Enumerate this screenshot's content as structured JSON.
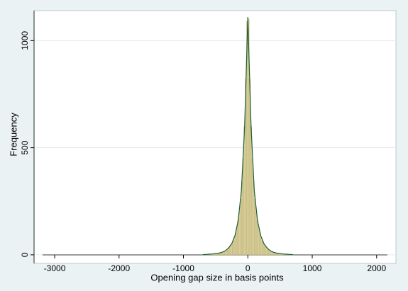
{
  "chart_data": {
    "type": "histogram",
    "xlabel": "Opening gap size in basis points",
    "ylabel": "Frequency",
    "bins": [
      -700,
      -680,
      -660,
      -640,
      -620,
      -600,
      -580,
      -560,
      -540,
      -520,
      -500,
      -480,
      -460,
      -440,
      -420,
      -400,
      -380,
      -360,
      -340,
      -320,
      -300,
      -280,
      -260,
      -240,
      -220,
      -200,
      -180,
      -160,
      -140,
      -120,
      -100,
      -80,
      -60,
      -40,
      -20,
      0,
      20,
      40,
      60,
      80,
      100,
      120,
      140,
      160,
      180,
      200,
      220,
      240,
      260,
      280,
      300,
      320,
      340,
      360,
      380,
      400,
      420,
      440,
      460,
      480,
      500,
      520,
      540,
      560,
      580,
      600,
      620,
      640,
      660,
      680,
      700
    ],
    "values": [
      1,
      1,
      2,
      2,
      2,
      3,
      3,
      4,
      4,
      5,
      6,
      7,
      8,
      9,
      11,
      13,
      16,
      19,
      23,
      28,
      35,
      42,
      52,
      65,
      80,
      100,
      125,
      160,
      200,
      260,
      340,
      450,
      600,
      820,
      1090,
      1100,
      820,
      600,
      450,
      340,
      260,
      200,
      160,
      125,
      100,
      80,
      65,
      52,
      42,
      35,
      28,
      23,
      19,
      16,
      13,
      11,
      9,
      8,
      7,
      6,
      5,
      4,
      4,
      3,
      3,
      2,
      2,
      2,
      1,
      1
    ],
    "color": "#d9cf9b",
    "curve": {
      "x": [
        -700,
        -650,
        -600,
        -550,
        -500,
        -450,
        -400,
        -350,
        -300,
        -250,
        -200,
        -150,
        -100,
        -50,
        0,
        50,
        100,
        150,
        200,
        250,
        300,
        350,
        400,
        450,
        500,
        550,
        600,
        650,
        700
      ],
      "values": [
        1,
        2,
        3,
        4,
        6,
        8,
        12,
        19,
        32,
        52,
        90,
        160,
        300,
        600,
        1110,
        600,
        300,
        160,
        90,
        52,
        32,
        19,
        12,
        8,
        6,
        4,
        3,
        2,
        1
      ],
      "color": "#1f5f2f"
    },
    "xlim": [
      -3320,
      2300
    ],
    "xticks": [
      -3000,
      -2000,
      -1000,
      0,
      1000,
      2000
    ],
    "ylim": [
      -40,
      1140
    ],
    "yticks": [
      0,
      500,
      1000
    ],
    "grid": true
  }
}
